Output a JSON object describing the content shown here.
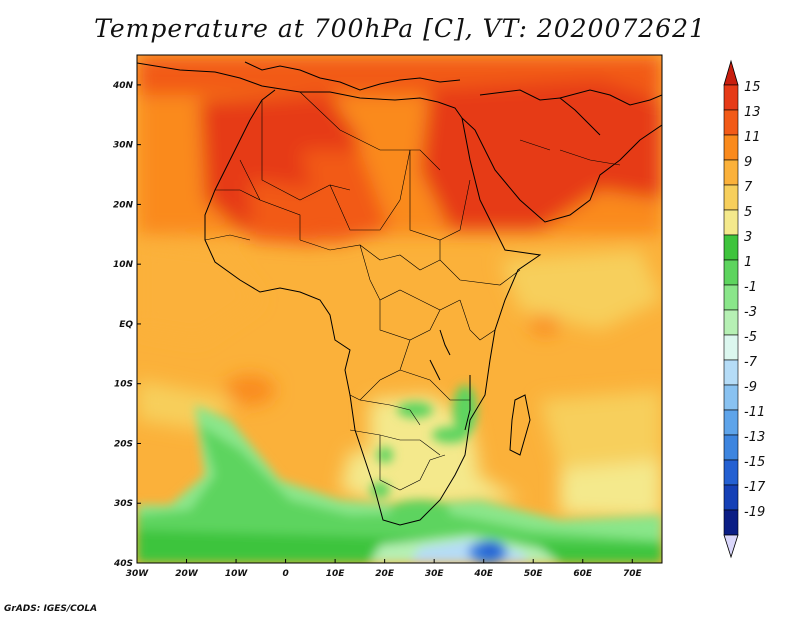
{
  "title": "Temperature at 700hPa [C], VT: 2020072621",
  "credit": "GrADS: IGES/COLA",
  "chart_data": {
    "type": "heatmap",
    "title": "Temperature at 700hPa [C], VT: 2020072621",
    "variable": "Temperature at 700hPa",
    "units": "C",
    "valid_time": "2020072621",
    "lon_range": [
      -30,
      76
    ],
    "lat_range": [
      -40,
      45
    ],
    "x_tick_labels": [
      "30W",
      "20W",
      "10W",
      "0",
      "10E",
      "20E",
      "30E",
      "40E",
      "50E",
      "60E",
      "70E"
    ],
    "x_tick_values": [
      -30,
      -20,
      -10,
      0,
      10,
      20,
      30,
      40,
      50,
      60,
      70
    ],
    "y_tick_labels": [
      "40N",
      "30N",
      "20N",
      "10N",
      "EQ",
      "10S",
      "20S",
      "30S",
      "40S"
    ],
    "y_tick_values": [
      40,
      30,
      20,
      10,
      0,
      -10,
      -20,
      -30,
      -40
    ],
    "colorbar_labels": [
      "15",
      "13",
      "11",
      "9",
      "7",
      "5",
      "3",
      "1",
      "-1",
      "-3",
      "-5",
      "-7",
      "-9",
      "-11",
      "-13",
      "-15",
      "-17",
      "-19"
    ],
    "colorbar_colors": [
      "#e63a17",
      "#f25a17",
      "#fa8a1c",
      "#fbb13a",
      "#f7cf5c",
      "#f4e98c",
      "#3ec43c",
      "#5dd45e",
      "#8ae68a",
      "#b6f0b4",
      "#dcf7ef",
      "#b5dcf7",
      "#89c2f1",
      "#5ea4ea",
      "#3d85df",
      "#2460d2",
      "#1540b6",
      "#0b1e85"
    ],
    "colorbar_end_colors": {
      "top": "#c81e0e",
      "bottom": "#dad7fb"
    }
  }
}
